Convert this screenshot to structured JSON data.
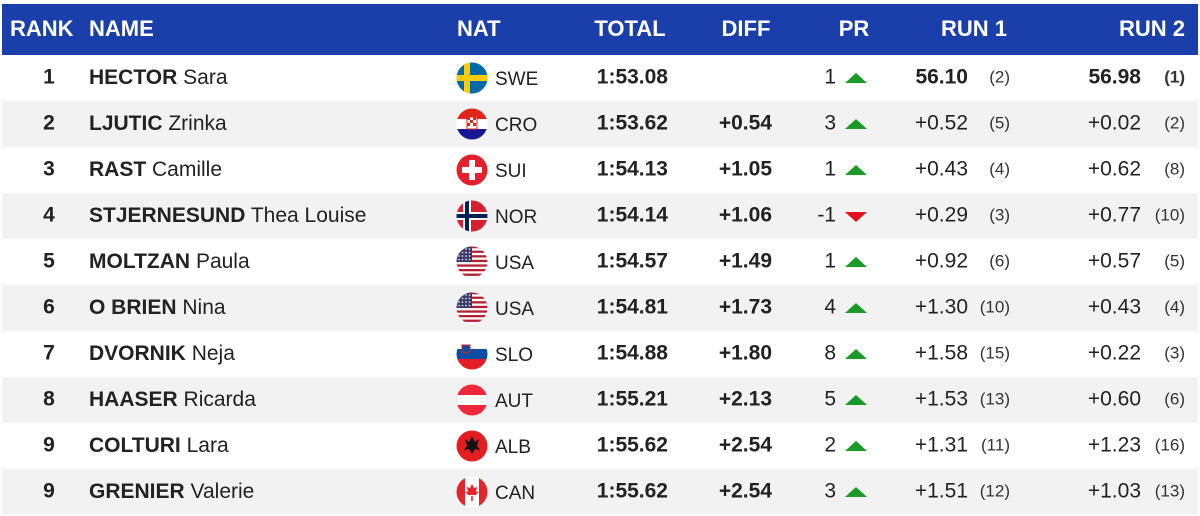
{
  "table": {
    "headers": [
      "RANK",
      "NAME",
      "NAT",
      "TOTAL",
      "DIFF",
      "PR",
      "RUN 1",
      "RUN 2"
    ],
    "rows": [
      {
        "rank": "1",
        "last": "HECTOR",
        "first": "Sara",
        "nat": "SWE",
        "total": "1:53.08",
        "pr": "1",
        "run1": "56.10",
        "run1_rank": "(2)",
        "run2": "56.98",
        "run2_rank": "(1)"
      },
      {
        "rank": "2",
        "last": "LJUTIC",
        "first": "Zrinka",
        "nat": "CRO",
        "total": "1:53.62",
        "diff": "+0.54",
        "pr": "3",
        "run1": "+0.52",
        "run1_rank": "(5)",
        "run2": "+0.02",
        "run2_rank": "(2)"
      },
      {
        "rank": "3",
        "last": "RAST",
        "first": "Camille",
        "nat": "SUI",
        "total": "1:54.13",
        "diff": "+1.05",
        "pr": "1",
        "run1": "+0.43",
        "run1_rank": "(4)",
        "run2": "+0.62",
        "run2_rank": "(8)"
      },
      {
        "rank": "4",
        "last": "STJERNESUND",
        "first": "Thea Louise",
        "nat": "NOR",
        "total": "1:54.14",
        "diff": "+1.06",
        "pr": "-1",
        "run1": "+0.29",
        "run1_rank": "(3)",
        "run2": "+0.77",
        "run2_rank": "(10)"
      },
      {
        "rank": "5",
        "last": "MOLTZAN",
        "first": "Paula",
        "nat": "USA",
        "total": "1:54.57",
        "diff": "+1.49",
        "pr": "1",
        "run1": "+0.92",
        "run1_rank": "(6)",
        "run2": "+0.57",
        "run2_rank": "(5)"
      },
      {
        "rank": "6",
        "last": "O BRIEN",
        "first": "Nina",
        "nat": "USA",
        "total": "1:54.81",
        "diff": "+1.73",
        "pr": "4",
        "run1": "+1.30",
        "run1_rank": "(10)",
        "run2": "+0.43",
        "run2_rank": "(4)"
      },
      {
        "rank": "7",
        "last": "DVORNIK",
        "first": "Neja",
        "nat": "SLO",
        "total": "1:54.88",
        "diff": "+1.80",
        "pr": "8",
        "run1": "+1.58",
        "run1_rank": "(15)",
        "run2": "+0.22",
        "run2_rank": "(3)"
      },
      {
        "rank": "8",
        "last": "HAASER",
        "first": "Ricarda",
        "nat": "AUT",
        "total": "1:55.21",
        "diff": "+2.13",
        "pr": "5",
        "run1": "+1.53",
        "run1_rank": "(13)",
        "run2": "+0.60",
        "run2_rank": "(6)"
      },
      {
        "rank": "9",
        "last": "COLTURI",
        "first": "Lara",
        "nat": "ALB",
        "total": "1:55.62",
        "diff": "+2.54",
        "pr": "2",
        "run1": "+1.31",
        "run1_rank": "(11)",
        "run2": "+1.23",
        "run2_rank": "(16)"
      },
      {
        "rank": "9",
        "last": "GRENIER",
        "first": "Valerie",
        "nat": "CAN",
        "total": "1:55.62",
        "diff": "+2.54",
        "pr": "3",
        "run1": "+1.51",
        "run1_rank": "(12)",
        "run2": "+1.03",
        "run2_rank": "(13)"
      }
    ]
  }
}
